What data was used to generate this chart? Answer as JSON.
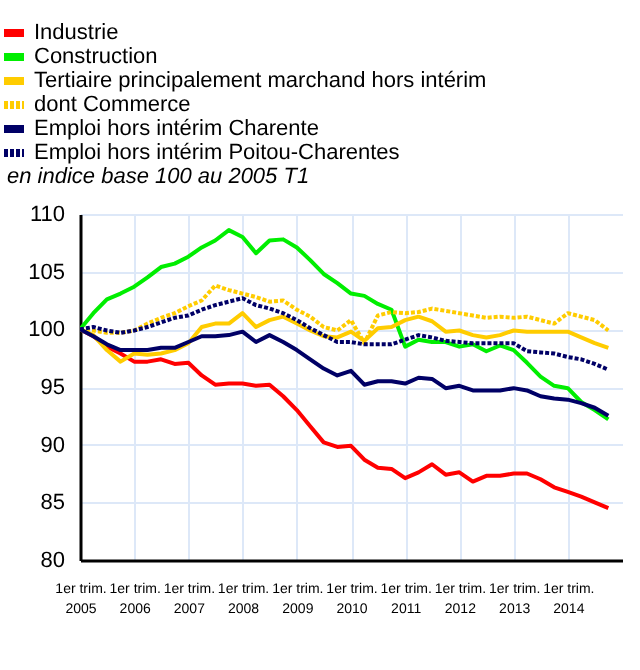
{
  "chart_data": {
    "type": "line",
    "ylabel": "en indice base 100 au 2005 T1",
    "x": [
      "2005-01",
      "2005-04",
      "2005-07",
      "2005-10",
      "2006-01",
      "2006-04",
      "2006-07",
      "2006-10",
      "2007-01",
      "2007-04",
      "2007-07",
      "2007-10",
      "2008-01",
      "2008-04",
      "2008-07",
      "2008-10",
      "2009-01",
      "2009-04",
      "2009-07",
      "2009-10",
      "2010-01",
      "2010-04",
      "2010-07",
      "2010-10",
      "2011-01",
      "2011-04",
      "2011-07",
      "2011-10",
      "2012-01",
      "2012-04",
      "2012-07",
      "2012-10",
      "2013-01",
      "2013-04",
      "2013-07",
      "2013-10",
      "2014-01",
      "2014-04",
      "2014-07",
      "2014-10"
    ],
    "series": [
      {
        "name": "Industrie",
        "color": "#ff0000",
        "line_style": "solid",
        "values": [
          100,
          99.4,
          98.5,
          97.9,
          97.2,
          97.2,
          97.4,
          97.0,
          97.1,
          96.0,
          95.2,
          95.3,
          95.3,
          95.1,
          95.2,
          94.2,
          93.0,
          91.6,
          90.2,
          89.8,
          89.9,
          88.7,
          88.0,
          87.9,
          87.1,
          87.6,
          88.3,
          87.4,
          87.6,
          86.8,
          87.3,
          87.3,
          87.5,
          87.5,
          87.0,
          86.3,
          85.9,
          85.5,
          85.0,
          84.5
        ]
      },
      {
        "name": "Construction",
        "color": "#00ee00",
        "line_style": "solid",
        "values": [
          100,
          101.4,
          102.6,
          103.1,
          103.7,
          104.5,
          105.4,
          105.7,
          106.3,
          107.1,
          107.7,
          108.6,
          108.0,
          106.6,
          107.7,
          107.8,
          107.1,
          106.0,
          104.8,
          104.0,
          103.1,
          102.9,
          102.2,
          101.7,
          98.5,
          99.1,
          98.9,
          98.9,
          98.5,
          98.7,
          98.1,
          98.6,
          98.2,
          97.1,
          95.9,
          95.1,
          94.9,
          93.7,
          93.0,
          92.2
        ]
      },
      {
        "name": "Tertiaire principalement marchand hors intérim",
        "color": "#ffcc00",
        "line_style": "solid",
        "values": [
          100,
          99.5,
          98.2,
          97.2,
          97.9,
          97.8,
          97.9,
          98.2,
          98.8,
          100.2,
          100.5,
          100.5,
          101.4,
          100.2,
          100.8,
          101.1,
          100.5,
          99.9,
          99.4,
          99.3,
          99.8,
          99.0,
          100.1,
          100.2,
          100.8,
          101.1,
          100.7,
          99.8,
          99.9,
          99.5,
          99.3,
          99.5,
          99.9,
          99.8,
          99.8,
          99.8,
          99.8,
          99.3,
          98.8,
          98.4
        ]
      },
      {
        "name": "dont Commerce",
        "color": "#ffcc00",
        "line_style": "dotted",
        "values": [
          100,
          99.9,
          99.7,
          99.7,
          99.9,
          100.5,
          101.0,
          101.4,
          102.0,
          102.5,
          103.8,
          103.4,
          103.1,
          102.8,
          102.4,
          102.5,
          101.7,
          101.1,
          100.2,
          99.9,
          100.8,
          98.8,
          101.2,
          101.5,
          101.4,
          101.5,
          101.8,
          101.6,
          101.4,
          101.2,
          101.0,
          101.1,
          101.0,
          101.1,
          100.8,
          100.5,
          101.4,
          101.1,
          100.8,
          99.9
        ]
      },
      {
        "name": "Emploi hors intérim Charente",
        "color": "#000066",
        "line_style": "solid",
        "values": [
          100,
          99.4,
          98.7,
          98.2,
          98.2,
          98.2,
          98.4,
          98.4,
          98.9,
          99.4,
          99.4,
          99.5,
          99.8,
          98.9,
          99.5,
          98.9,
          98.2,
          97.4,
          96.6,
          96.0,
          96.4,
          95.2,
          95.5,
          95.5,
          95.3,
          95.8,
          95.7,
          94.9,
          95.1,
          94.7,
          94.7,
          94.7,
          94.9,
          94.7,
          94.2,
          94.0,
          93.9,
          93.6,
          93.2,
          92.5
        ]
      },
      {
        "name": "Emploi hors intérim Poitou-Charentes",
        "color": "#000066",
        "line_style": "dotted",
        "values": [
          100,
          100.2,
          99.9,
          99.7,
          99.9,
          100.2,
          100.6,
          101.0,
          101.2,
          101.7,
          102.1,
          102.4,
          102.7,
          102.1,
          101.8,
          101.4,
          100.8,
          100.1,
          99.5,
          98.9,
          98.9,
          98.7,
          98.7,
          98.7,
          99.1,
          99.5,
          99.3,
          99.0,
          98.9,
          98.8,
          98.8,
          98.8,
          98.8,
          98.1,
          98.0,
          97.9,
          97.6,
          97.4,
          97.0,
          96.5
        ]
      }
    ],
    "xlim": [
      "2005-01",
      "2015-01"
    ],
    "xticks": [
      {
        "value": "2005-01",
        "label": "1er trim.\n2005"
      },
      {
        "value": "2006-01",
        "label": "1er trim.\n2006"
      },
      {
        "value": "2007-01",
        "label": "1er trim.\n2007"
      },
      {
        "value": "2008-01",
        "label": "1er trim.\n2008"
      },
      {
        "value": "2009-01",
        "label": "1er trim.\n2009"
      },
      {
        "value": "2010-01",
        "label": "1er trim.\n2010"
      },
      {
        "value": "2011-01",
        "label": "1er trim.\n2011"
      },
      {
        "value": "2012-01",
        "label": "1er trim.\n2012"
      },
      {
        "value": "2013-01",
        "label": "1er trim.\n2013"
      },
      {
        "value": "2014-01",
        "label": "1er trim.\n2014"
      }
    ],
    "ylim": [
      80,
      110
    ],
    "yticks": [
      80,
      85,
      90,
      95,
      100,
      105,
      110
    ],
    "grid": true,
    "legend": "top left",
    "marker": "none"
  }
}
